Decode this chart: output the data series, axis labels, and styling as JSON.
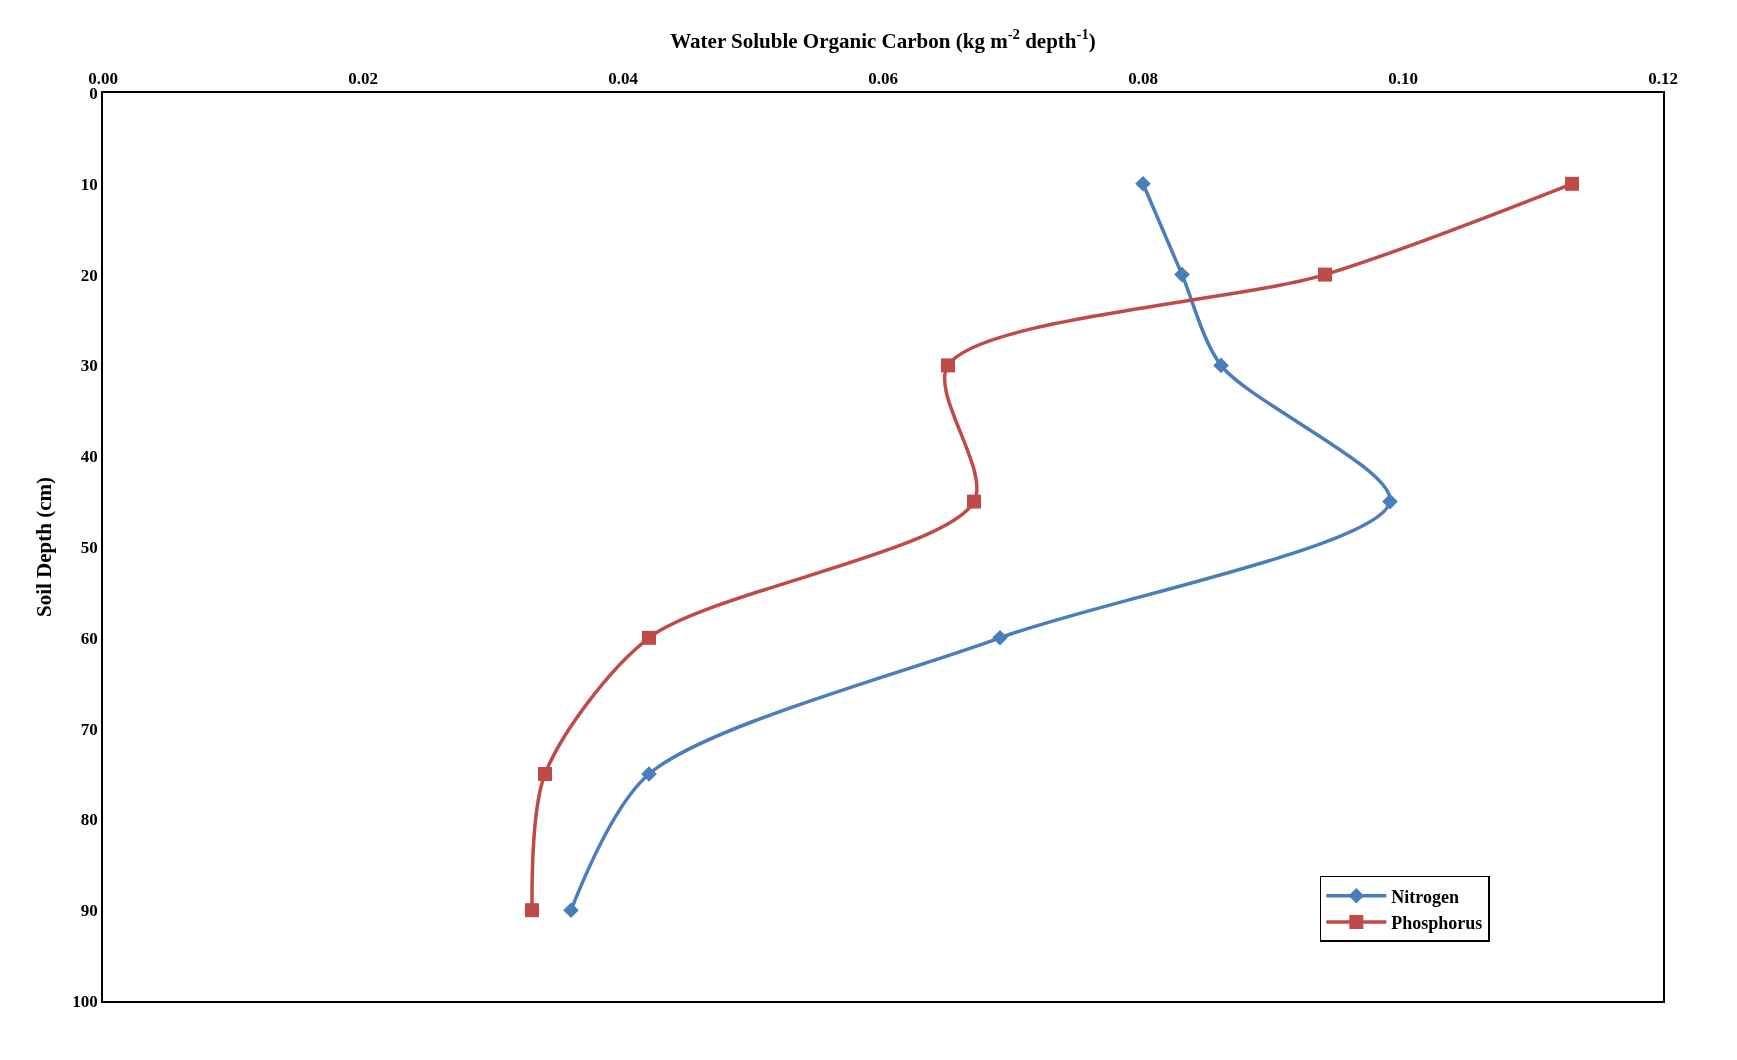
{
  "chart_data": {
    "type": "line",
    "xlabel": "Water Soluble Organic Carbon (kg m$^{-2}$ depth$^{-1}$)",
    "ylabel": "Soil Depth (cm)",
    "series": [
      {
        "name": "Nitrogen",
        "color": "#4a7ebb",
        "marker": "diamond",
        "x": [
          0.08,
          0.083,
          0.086,
          0.099,
          0.069,
          0.042,
          0.036
        ],
        "values": [
          10,
          20,
          30,
          45,
          60,
          75,
          90
        ]
      },
      {
        "name": "Phosphorus",
        "color": "#be4b48",
        "marker": "square",
        "x": [
          0.113,
          0.094,
          0.065,
          0.067,
          0.042,
          0.034,
          0.033
        ],
        "values": [
          10,
          20,
          30,
          45,
          60,
          75,
          90
        ]
      }
    ],
    "xlim": [
      0,
      0.12
    ],
    "xticks": [
      {
        "value": 0,
        "label": "0.00"
      },
      0.02,
      0.04,
      0.06,
      0.08,
      {
        "value": 0.1,
        "label": "0.10"
      },
      0.12
    ],
    "ylim": [
      100,
      0
    ],
    "yticks": [
      0,
      10,
      20,
      30,
      40,
      50,
      60,
      70,
      80,
      90,
      100
    ],
    "legend": "bottom right",
    "line_style": "solid"
  }
}
